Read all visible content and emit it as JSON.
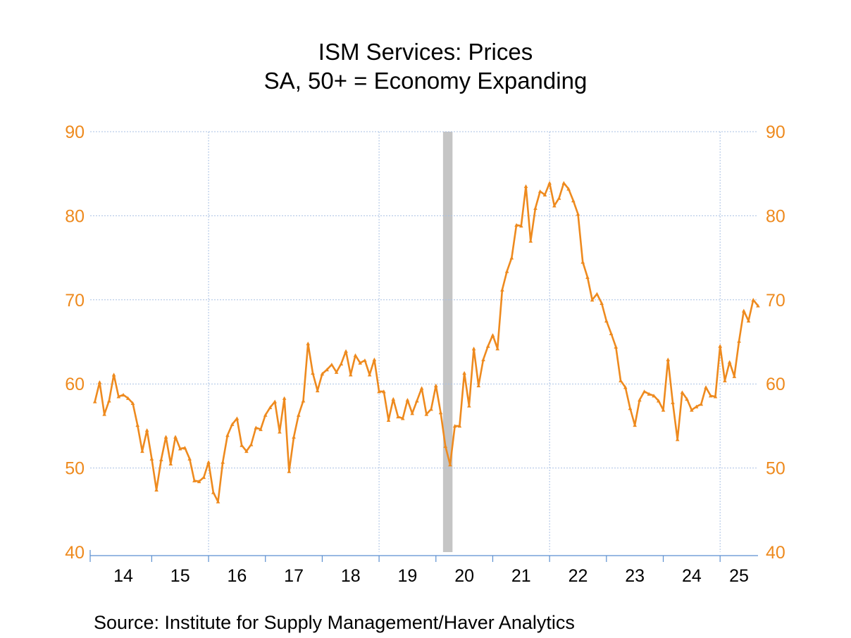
{
  "chart_data": {
    "type": "line",
    "title": "ISM Services: Prices",
    "subtitle": "SA, 50+ = Economy Expanding",
    "source": "Source:  Institute for Supply Management/Haver Analytics",
    "ylim": [
      40,
      90
    ],
    "y_ticks": [
      "90",
      "80",
      "70",
      "60",
      "50",
      "40"
    ],
    "y_tick_values": [
      90,
      80,
      70,
      60,
      50,
      40
    ],
    "x_range": [
      2013.917,
      2025.667
    ],
    "x_tick_labels": [
      "14",
      "15",
      "16",
      "17",
      "18",
      "19",
      "20",
      "21",
      "22",
      "23",
      "24",
      "25"
    ],
    "x_tick_centers": [
      2014.5,
      2015.5,
      2016.5,
      2017.5,
      2018.5,
      2019.5,
      2020.5,
      2021.5,
      2022.5,
      2023.5,
      2024.5,
      2025.333
    ],
    "x_minor_ticks": [
      2015,
      2016,
      2017,
      2018,
      2019,
      2020,
      2021,
      2022,
      2023,
      2024,
      2025
    ],
    "x_gridlines": [
      2016,
      2019,
      2022,
      2025
    ],
    "recession": {
      "start": 2020.125,
      "end": 2020.292
    },
    "grid": true,
    "colors": {
      "series": "#ee8a1e",
      "axis_labels": "#ee8a1e",
      "grid": "#a9c0e3",
      "axis": "#5b8fd0",
      "recession": "#c5c5c5"
    },
    "series": [
      {
        "x_start": "2014-01",
        "frequency": "monthly",
        "values": [
          57.9,
          60.2,
          56.4,
          58.0,
          61.1,
          58.5,
          58.7,
          58.3,
          57.7,
          55.1,
          52.0,
          54.5,
          51.1,
          47.4,
          51.0,
          53.7,
          50.5,
          53.7,
          52.3,
          52.4,
          51.1,
          48.5,
          48.4,
          48.9,
          50.7,
          47.1,
          46.0,
          50.7,
          53.9,
          55.2,
          55.9,
          52.7,
          52.0,
          52.8,
          54.8,
          54.6,
          56.3,
          57.2,
          57.9,
          54.3,
          58.3,
          49.6,
          53.7,
          56.3,
          58.0,
          64.8,
          61.3,
          59.2,
          61.2,
          61.7,
          62.3,
          61.4,
          62.4,
          63.9,
          61.1,
          63.4,
          62.5,
          62.8,
          61.1,
          62.9,
          59.1,
          59.1,
          55.7,
          58.2,
          56.1,
          55.9,
          58.1,
          56.5,
          58.0,
          59.5,
          56.4,
          57.0,
          59.8,
          56.6,
          52.6,
          50.4,
          55.0,
          55.0,
          61.3,
          57.4,
          64.2,
          59.8,
          62.9,
          64.5,
          65.8,
          64.2,
          71.2,
          73.4,
          75.0,
          78.9,
          78.8,
          83.5,
          77.0,
          80.9,
          82.9,
          82.5,
          83.9,
          81.2,
          82.1,
          83.9,
          83.2,
          81.8,
          80.2,
          74.5,
          72.7,
          70.0,
          70.7,
          69.6,
          67.5,
          66.0,
          64.4,
          60.4,
          59.6,
          57.1,
          55.1,
          58.1,
          59.1,
          58.8,
          58.6,
          58.0,
          56.9,
          62.9,
          57.8,
          53.4,
          59.0,
          58.2,
          56.9,
          57.3,
          57.6,
          59.6,
          58.6,
          58.5,
          64.5,
          60.4,
          62.6,
          60.9,
          65.1,
          68.7,
          67.5,
          70.0,
          69.3
        ]
      }
    ]
  }
}
